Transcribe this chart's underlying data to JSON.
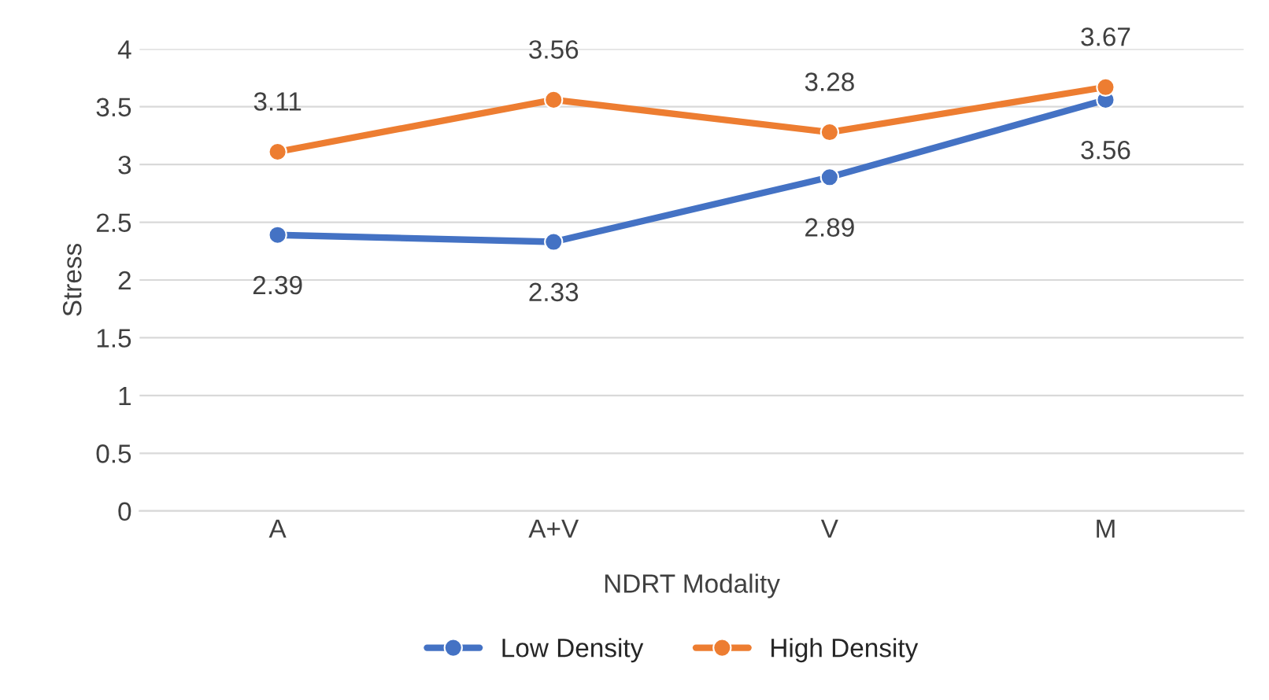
{
  "chart_data": {
    "type": "line",
    "xlabel": "NDRT Modality",
    "ylabel": "Stress",
    "categories": [
      "A",
      "A+V",
      "V",
      "M"
    ],
    "series": [
      {
        "name": "Low Density",
        "color": "#4472c4",
        "values": [
          2.39,
          2.33,
          2.89,
          3.56
        ]
      },
      {
        "name": "High Density",
        "color": "#ed7d31",
        "values": [
          3.11,
          3.56,
          3.28,
          3.67
        ]
      }
    ],
    "ylim": [
      0,
      4
    ],
    "yticks": [
      0,
      0.5,
      1,
      1.5,
      2,
      2.5,
      3,
      3.5,
      4
    ],
    "grid": "y",
    "legend": "bottom",
    "marker": "circle",
    "line_style": "solid",
    "data_labels": true
  }
}
